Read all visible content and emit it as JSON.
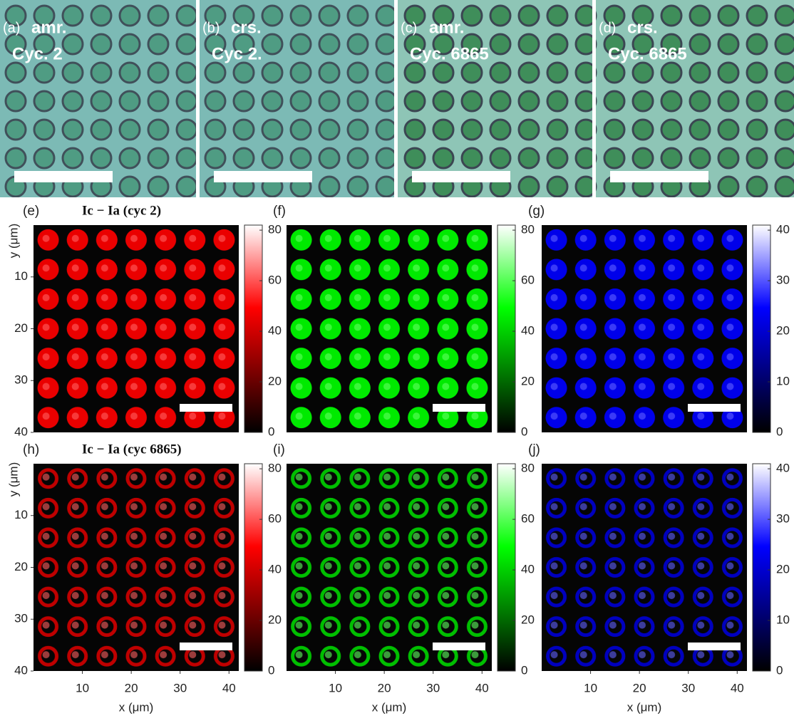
{
  "photos": [
    {
      "label": "(a)",
      "line1": "amr.",
      "line2": "Cyc. 2"
    },
    {
      "label": "(b)",
      "line1": "crs.",
      "line2": "Cyc 2."
    },
    {
      "label": "(c)",
      "line1": "amr.",
      "line2": "Cyc. 6865"
    },
    {
      "label": "(d)",
      "line1": "crs.",
      "line2": "Cyc. 6865"
    }
  ],
  "maps": {
    "rows": [
      {
        "labels": [
          "(e)",
          "(f)",
          "(g)"
        ],
        "title": "Ic − Ia (cyc 2)"
      },
      {
        "labels": [
          "(h)",
          "(i)",
          "(j)"
        ],
        "title": "Ic − Ia (cyc 6865)"
      }
    ],
    "colorbars": [
      {
        "color": "#ff0000",
        "clim": [
          0,
          82
        ],
        "ticks": [
          0,
          20,
          40,
          60,
          80
        ]
      },
      {
        "color": "#00ff00",
        "clim": [
          0,
          82
        ],
        "ticks": [
          0,
          20,
          40,
          60,
          80
        ]
      },
      {
        "color": "#0000ff",
        "clim": [
          0,
          41
        ],
        "ticks": [
          0,
          10,
          20,
          30,
          40
        ]
      }
    ],
    "xlim": [
      0,
      42
    ],
    "ylim": [
      0,
      40
    ],
    "xticks": [
      10,
      20,
      30,
      40
    ],
    "yticks": [
      10,
      20,
      30,
      40
    ],
    "xlabel": "x (μm)",
    "ylabel": "y (μm)"
  }
}
